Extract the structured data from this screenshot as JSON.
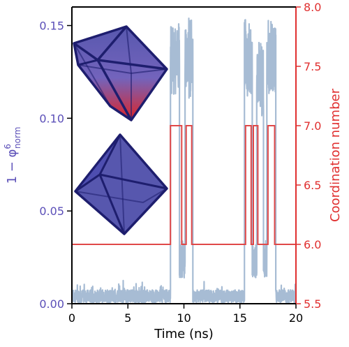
{
  "chart_data": {
    "type": "line",
    "xlabel": "Time (ns)",
    "ylabel_left": "1 − φ",
    "ylabel_left_sup": "6",
    "ylabel_left_sub": "norm",
    "ylabel_right": "Coordination number",
    "xlim": [
      0,
      20
    ],
    "ylim_left": [
      0,
      0.16
    ],
    "ylim_right": [
      5.5,
      8.0
    ],
    "xticks": [
      0,
      5,
      10,
      15,
      20
    ],
    "xtick_labels": [
      "0",
      "5",
      "10",
      "15",
      "20"
    ],
    "yticks_left": [
      0.0,
      0.05,
      0.1,
      0.15
    ],
    "ytick_labels_left": [
      "0.00",
      "0.05",
      "0.10",
      "0.15"
    ],
    "yticks_right": [
      5.5,
      6.0,
      6.5,
      7.0,
      7.5,
      8.0
    ],
    "ytick_labels_right": [
      "5.5",
      "6.0",
      "6.5",
      "7.0",
      "7.5",
      "8.0"
    ],
    "colors": {
      "left_axis": "#5b4fb8",
      "right_axis": "#e03030",
      "order_parameter_fill": "#a7bcd4",
      "coordination_line": "#e04848",
      "polyhedron_blue": "#2a2a8c",
      "polyhedron_red": "#e01010"
    },
    "series": [
      {
        "axis": "left",
        "style": "noisy-band",
        "baseline_segments": [
          [
            0,
            8.8,
            0.004
          ],
          [
            10.8,
            15.4,
            0.004
          ],
          [
            18.2,
            20,
            0.004
          ]
        ],
        "high_segments": [
          [
            8.8,
            9.6,
            0.15
          ],
          [
            10.1,
            10.8,
            0.15
          ],
          [
            15.4,
            16.1,
            0.15
          ],
          [
            16.5,
            17.1,
            0.14
          ],
          [
            17.4,
            18.2,
            0.15
          ]
        ],
        "dip_segments": [
          [
            9.6,
            10.1,
            0.02
          ],
          [
            16.1,
            16.5,
            0.02
          ],
          [
            17.1,
            17.4,
            0.02
          ]
        ]
      },
      {
        "axis": "right",
        "style": "step",
        "steps": [
          [
            0,
            6.0
          ],
          [
            8.8,
            7.0
          ],
          [
            9.8,
            6.0
          ],
          [
            10.2,
            7.0
          ],
          [
            10.7,
            6.0
          ],
          [
            15.5,
            7.0
          ],
          [
            16.0,
            6.0
          ],
          [
            16.2,
            7.0
          ],
          [
            16.6,
            6.0
          ],
          [
            17.5,
            7.0
          ],
          [
            18.1,
            6.0
          ],
          [
            20,
            6.0
          ]
        ]
      }
    ]
  }
}
